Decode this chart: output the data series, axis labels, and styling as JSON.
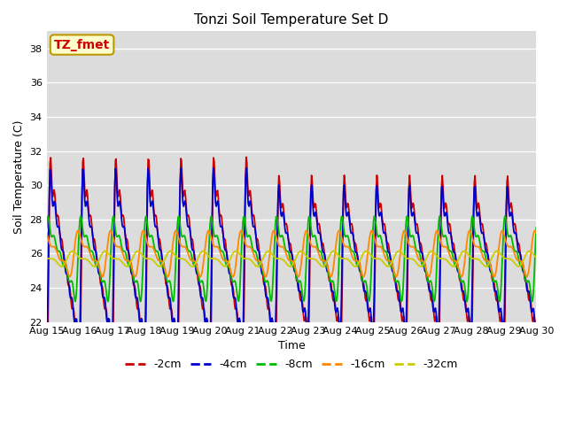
{
  "title": "Tonzi Soil Temperature Set D",
  "xlabel": "Time",
  "ylabel": "Soil Temperature (C)",
  "ylim": [
    22,
    39
  ],
  "xlim_days": 15,
  "annotation": "TZ_fmet",
  "xtick_labels": [
    "Aug 15",
    "Aug 16",
    "Aug 17",
    "Aug 18",
    "Aug 19",
    "Aug 20",
    "Aug 21",
    "Aug 22",
    "Aug 23",
    "Aug 24",
    "Aug 25",
    "Aug 26",
    "Aug 27",
    "Aug 28",
    "Aug 29",
    "Aug 30"
  ],
  "background_color": "#dcdcdc",
  "fig_background": "#ffffff",
  "series": {
    "neg2cm": {
      "color": "#cc0000",
      "label": "-2cm",
      "lw": 1.3
    },
    "neg4cm": {
      "color": "#0000cc",
      "label": "-4cm",
      "lw": 1.3
    },
    "neg8cm": {
      "color": "#00bb00",
      "label": "-8cm",
      "lw": 1.3
    },
    "neg16cm": {
      "color": "#ff8800",
      "label": "-16cm",
      "lw": 1.3
    },
    "neg32cm": {
      "color": "#cccc00",
      "label": "-32cm",
      "lw": 1.3
    }
  }
}
